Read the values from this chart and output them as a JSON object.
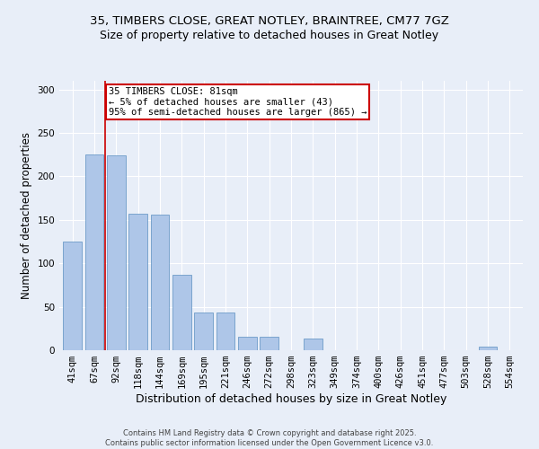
{
  "title_line1": "35, TIMBERS CLOSE, GREAT NOTLEY, BRAINTREE, CM77 7GZ",
  "title_line2": "Size of property relative to detached houses in Great Notley",
  "xlabel": "Distribution of detached houses by size in Great Notley",
  "ylabel": "Number of detached properties",
  "categories": [
    "41sqm",
    "67sqm",
    "92sqm",
    "118sqm",
    "144sqm",
    "169sqm",
    "195sqm",
    "221sqm",
    "246sqm",
    "272sqm",
    "298sqm",
    "323sqm",
    "349sqm",
    "374sqm",
    "400sqm",
    "426sqm",
    "451sqm",
    "477sqm",
    "503sqm",
    "528sqm",
    "554sqm"
  ],
  "values": [
    125,
    225,
    224,
    157,
    156,
    87,
    43,
    43,
    15,
    15,
    0,
    13,
    0,
    0,
    0,
    0,
    0,
    0,
    0,
    4,
    0
  ],
  "bar_color": "#aec6e8",
  "bar_edge_color": "#5a8fc0",
  "vline_color": "#cc0000",
  "annotation_text": "35 TIMBERS CLOSE: 81sqm\n← 5% of detached houses are smaller (43)\n95% of semi-detached houses are larger (865) →",
  "annotation_box_color": "#ffffff",
  "annotation_box_edge": "#cc0000",
  "ylim": [
    0,
    310
  ],
  "yticks": [
    0,
    50,
    100,
    150,
    200,
    250,
    300
  ],
  "footer_text": "Contains HM Land Registry data © Crown copyright and database right 2025.\nContains public sector information licensed under the Open Government Licence v3.0.",
  "bg_color": "#e8eef8",
  "grid_color": "#ffffff",
  "title1_fontsize": 9.5,
  "title2_fontsize": 9,
  "xlabel_fontsize": 9,
  "ylabel_fontsize": 8.5,
  "tick_fontsize": 7.5,
  "footer_fontsize": 6,
  "ann_fontsize": 7.5
}
